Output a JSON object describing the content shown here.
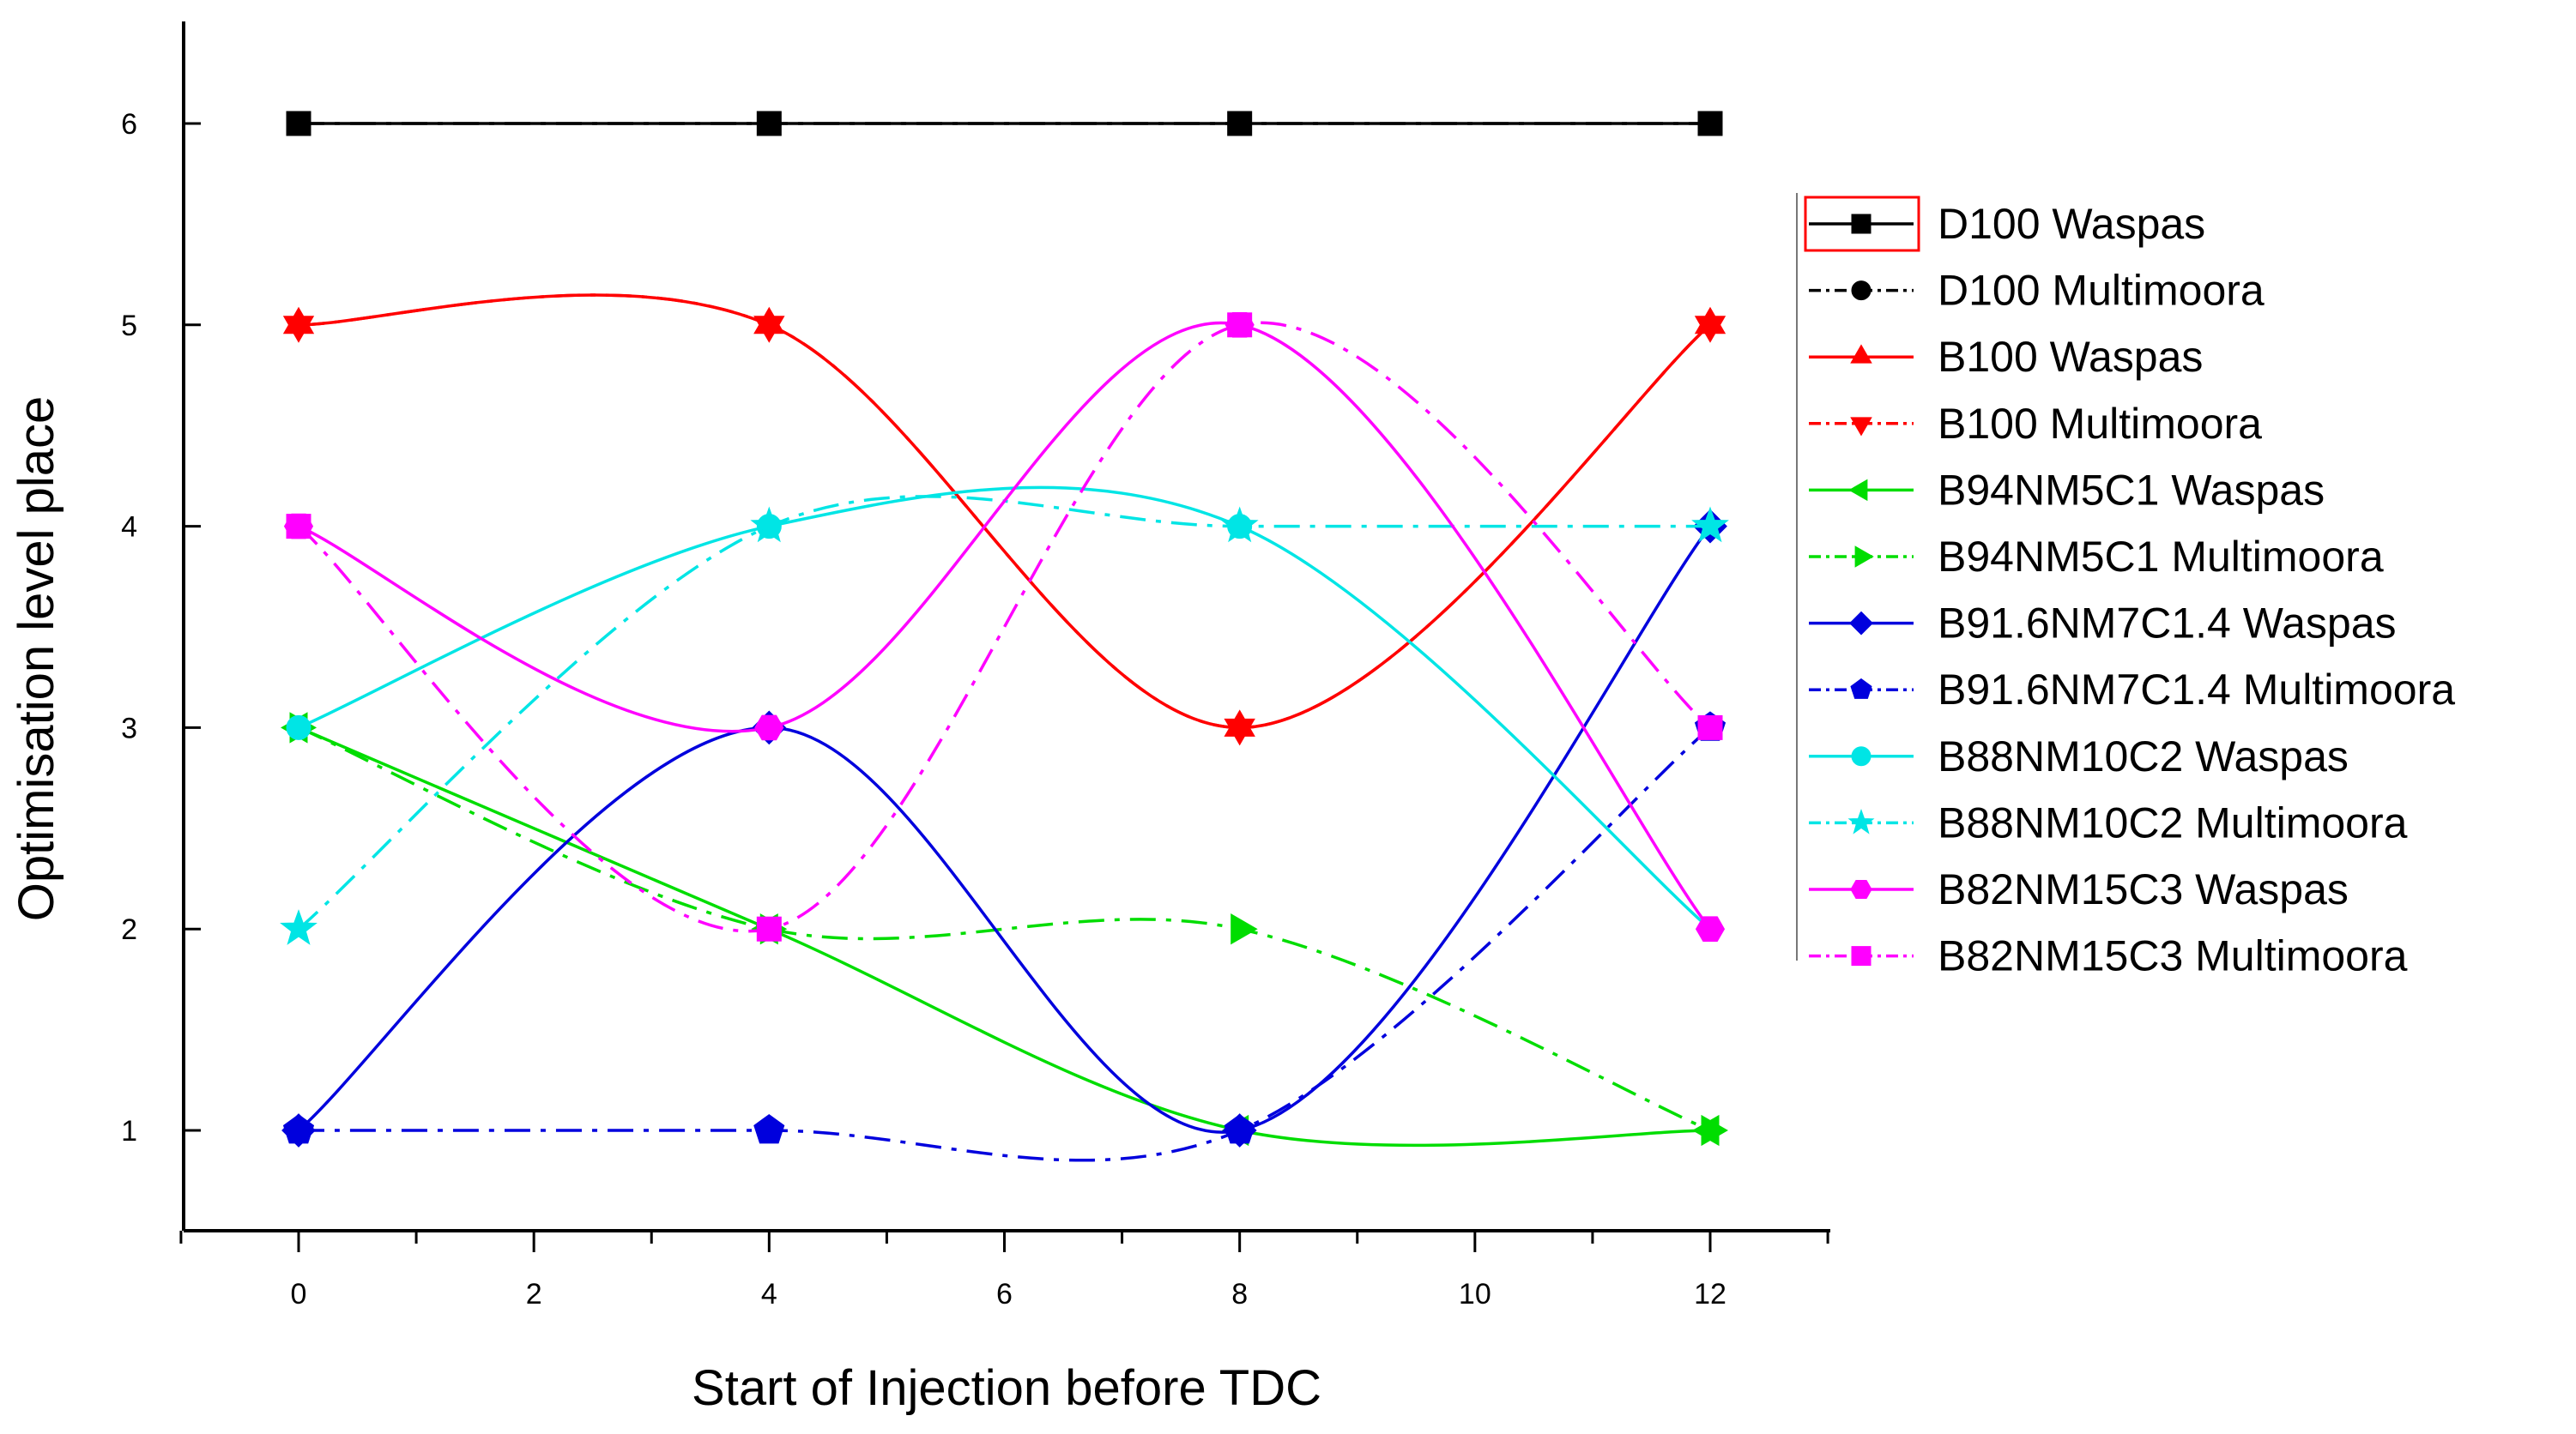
{
  "chart_data": {
    "type": "line",
    "title": "",
    "xlabel": "Start of Injection before TDC",
    "ylabel": "Optimisation level place",
    "xlim": [
      -1,
      13
    ],
    "ylim": [
      0.5,
      6.5
    ],
    "x_ticks": [
      0,
      2,
      4,
      6,
      8,
      10,
      12
    ],
    "x_tick_labels": [
      "0",
      "2",
      "4",
      "6",
      "8",
      "10",
      "12"
    ],
    "y_ticks": [
      1,
      2,
      3,
      4,
      5,
      6
    ],
    "y_tick_labels": [
      "1",
      "2",
      "3",
      "4",
      "5",
      "6"
    ],
    "x": [
      0,
      4,
      8,
      12
    ],
    "grid": false,
    "legend_position": "right",
    "series": [
      {
        "name": "D100 Waspas",
        "values": [
          6,
          6,
          6,
          6
        ],
        "color": "#000000",
        "marker": "square",
        "dash": "solid",
        "smooth": false
      },
      {
        "name": "D100 Multimoora",
        "values": [
          6,
          6,
          6,
          6
        ],
        "color": "#000000",
        "marker": "circle",
        "dash": "dashdot",
        "smooth": false
      },
      {
        "name": "B100 Waspas",
        "values": [
          5,
          5,
          3,
          5
        ],
        "color": "#ff0000",
        "marker": "triangle-up",
        "dash": "solid",
        "smooth": true
      },
      {
        "name": "B100 Multimoora",
        "values": [
          5,
          5,
          3,
          5
        ],
        "color": "#ff0000",
        "marker": "triangle-down",
        "dash": "dashdot",
        "smooth": true
      },
      {
        "name": "B94NM5C1 Waspas",
        "values": [
          3,
          2,
          1,
          1
        ],
        "color": "#00dd00",
        "marker": "triangle-left",
        "dash": "solid",
        "smooth": true
      },
      {
        "name": "B94NM5C1 Multimoora",
        "values": [
          3,
          2,
          2,
          1
        ],
        "color": "#00dd00",
        "marker": "triangle-right",
        "dash": "dashdot",
        "smooth": true
      },
      {
        "name": "B91.6NM7C1.4 Waspas",
        "values": [
          1,
          3,
          1,
          4
        ],
        "color": "#0000dd",
        "marker": "diamond",
        "dash": "solid",
        "smooth": true
      },
      {
        "name": "B91.6NM7C1.4 Multimoora",
        "values": [
          1,
          1,
          1,
          3
        ],
        "color": "#0000dd",
        "marker": "pentagon",
        "dash": "dashdot",
        "smooth": true
      },
      {
        "name": "B88NM10C2 Waspas",
        "values": [
          3,
          4,
          4,
          2
        ],
        "color": "#00e5e5",
        "marker": "circle",
        "dash": "solid",
        "smooth": true
      },
      {
        "name": "B88NM10C2 Multimoora",
        "values": [
          2,
          4,
          4,
          4
        ],
        "color": "#00e5e5",
        "marker": "star",
        "dash": "dashdot",
        "smooth": true
      },
      {
        "name": "B82NM15C3 Waspas",
        "values": [
          4,
          3,
          5,
          2
        ],
        "color": "#ff00ff",
        "marker": "hexagon",
        "dash": "solid",
        "smooth": true
      },
      {
        "name": "B82NM15C3 Multimoora",
        "values": [
          4,
          2,
          5,
          3
        ],
        "color": "#ff00ff",
        "marker": "square",
        "dash": "dashdot",
        "smooth": true
      }
    ]
  }
}
